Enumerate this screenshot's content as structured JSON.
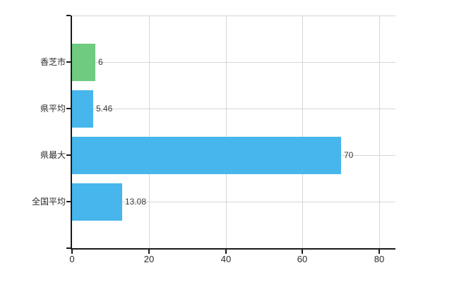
{
  "chart_data": {
    "type": "bar",
    "orientation": "horizontal",
    "title": "",
    "xlabel": "",
    "ylabel": "",
    "categories": [
      "香芝市",
      "県平均",
      "県最大",
      "全国平均"
    ],
    "values": [
      6,
      5.46,
      70,
      13.08
    ],
    "value_labels": [
      "6",
      "5.46",
      "70",
      "13.08"
    ],
    "series": [
      {
        "name": "value",
        "values": [
          6,
          5.46,
          70,
          13.08
        ]
      }
    ],
    "bar_colors": [
      "#6ecb80",
      "#46b6ec",
      "#46b6ec",
      "#46b6ec"
    ],
    "x_ticks": [
      0,
      20,
      40,
      60,
      80
    ],
    "x_tick_labels": [
      "0",
      "20",
      "40",
      "60",
      "80"
    ],
    "xlim": [
      0,
      84.2
    ],
    "grid": true,
    "legend": false
  },
  "colors": {
    "bar_blue": "#46b6ec",
    "bar_green": "#6ecb80",
    "grid": "#d6d6d6",
    "axis": "#1a1a1a",
    "text": "#2b2b2b",
    "value_text": "#3c3c3c",
    "background": "#ffffff"
  }
}
